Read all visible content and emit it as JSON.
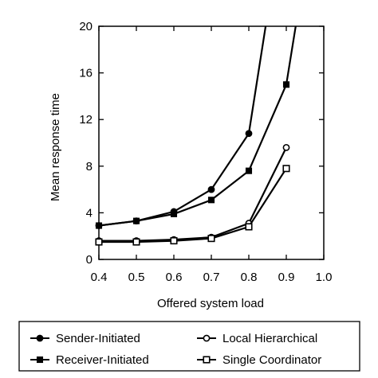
{
  "chart_data": {
    "type": "line",
    "xlabel": "Offered system load",
    "ylabel": "Mean response time",
    "xlim": [
      0.4,
      1.0
    ],
    "ylim": [
      0,
      20
    ],
    "xticks": [
      "0.4",
      "0.5",
      "0.6",
      "0.7",
      "0.8",
      "0.9",
      "1.0"
    ],
    "yticks": [
      "0",
      "4",
      "8",
      "12",
      "16",
      "20"
    ],
    "grid": false,
    "legend_position": "bottom",
    "series": [
      {
        "name": "Sender-Initiated",
        "marker": "filled-circle",
        "x": [
          0.4,
          0.5,
          0.6,
          0.7,
          0.8,
          0.845
        ],
        "y": [
          2.9,
          3.3,
          4.1,
          6.0,
          10.8,
          20
        ],
        "markers_at": [
          0.4,
          0.5,
          0.6,
          0.7,
          0.8
        ]
      },
      {
        "name": "Receiver-Initiated",
        "marker": "filled-square",
        "x": [
          0.4,
          0.5,
          0.6,
          0.7,
          0.8,
          0.9,
          0.925
        ],
        "y": [
          2.9,
          3.3,
          3.9,
          5.1,
          7.6,
          15.0,
          20
        ],
        "markers_at": [
          0.4,
          0.5,
          0.6,
          0.7,
          0.8,
          0.9
        ]
      },
      {
        "name": "Local Hierarchical",
        "marker": "open-circle",
        "x": [
          0.4,
          0.5,
          0.6,
          0.7,
          0.8,
          0.9
        ],
        "y": [
          1.6,
          1.6,
          1.7,
          1.9,
          3.1,
          9.6
        ],
        "markers_at": [
          0.4,
          0.5,
          0.6,
          0.7,
          0.8,
          0.9
        ]
      },
      {
        "name": "Single Coordinator",
        "marker": "open-square",
        "x": [
          0.4,
          0.5,
          0.6,
          0.7,
          0.8,
          0.9
        ],
        "y": [
          1.5,
          1.5,
          1.6,
          1.8,
          2.8,
          7.8
        ],
        "markers_at": [
          0.4,
          0.5,
          0.6,
          0.7,
          0.8,
          0.9
        ]
      }
    ]
  }
}
